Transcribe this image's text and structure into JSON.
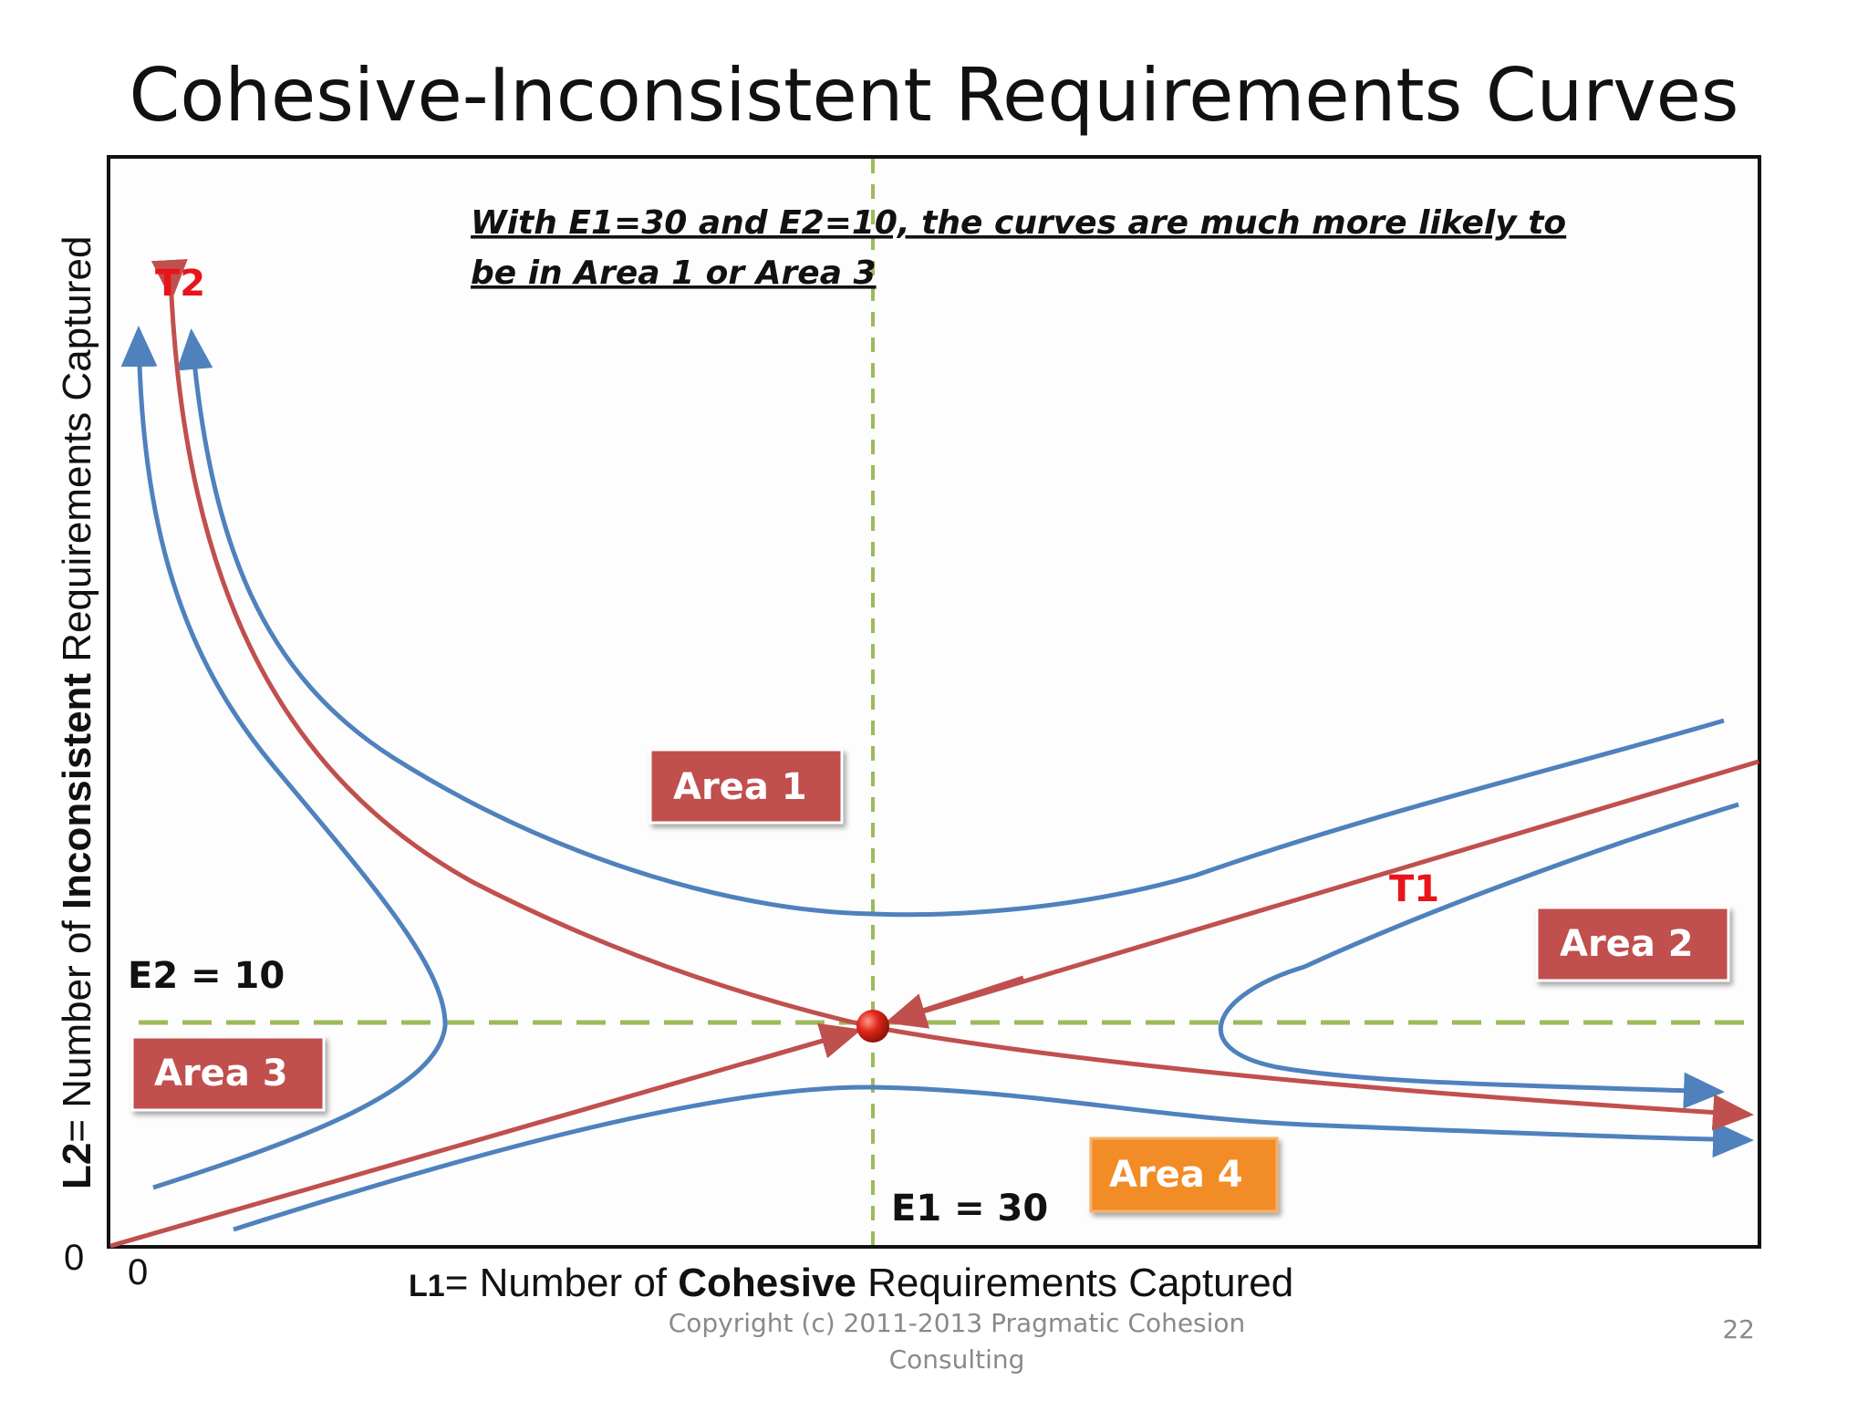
{
  "title": "Cohesive-Inconsistent Requirements Curves",
  "note": {
    "line1": "With E1=30 and E2=10, the curves are much more likely to",
    "line2": "be in Area 1 or Area 3"
  },
  "y_axis": {
    "prefix": "L2",
    "pre": "= Number of ",
    "bold": "Inconsistent",
    "post": " Requirements Captured"
  },
  "x_axis": {
    "prefix": "L1",
    "pre": "= Number of ",
    "bold": "Cohesive",
    "post": " Requirements Captured"
  },
  "origin": {
    "x": "0",
    "y": "0"
  },
  "equilibrium": {
    "e1": "E1 = 30",
    "e2": "E2 = 10"
  },
  "curve_labels": {
    "t1": "T1",
    "t2": "T2"
  },
  "areas": [
    {
      "label": "Area 1",
      "color": "#c0504d"
    },
    {
      "label": "Area 2",
      "color": "#c0504d"
    },
    {
      "label": "Area 3",
      "color": "#c0504d"
    },
    {
      "label": "Area 4",
      "color": "#f28c28"
    }
  ],
  "colors": {
    "trajectory": "#4f81bd",
    "separatrix": "#c0504d",
    "guide": "#9bbb59",
    "equilibrium_point": "#d9261c"
  },
  "footer": {
    "copyright_line1": "Copyright (c) 2011-2013 Pragmatic Cohesion",
    "copyright_line2": "Consulting",
    "page_number": "22"
  }
}
